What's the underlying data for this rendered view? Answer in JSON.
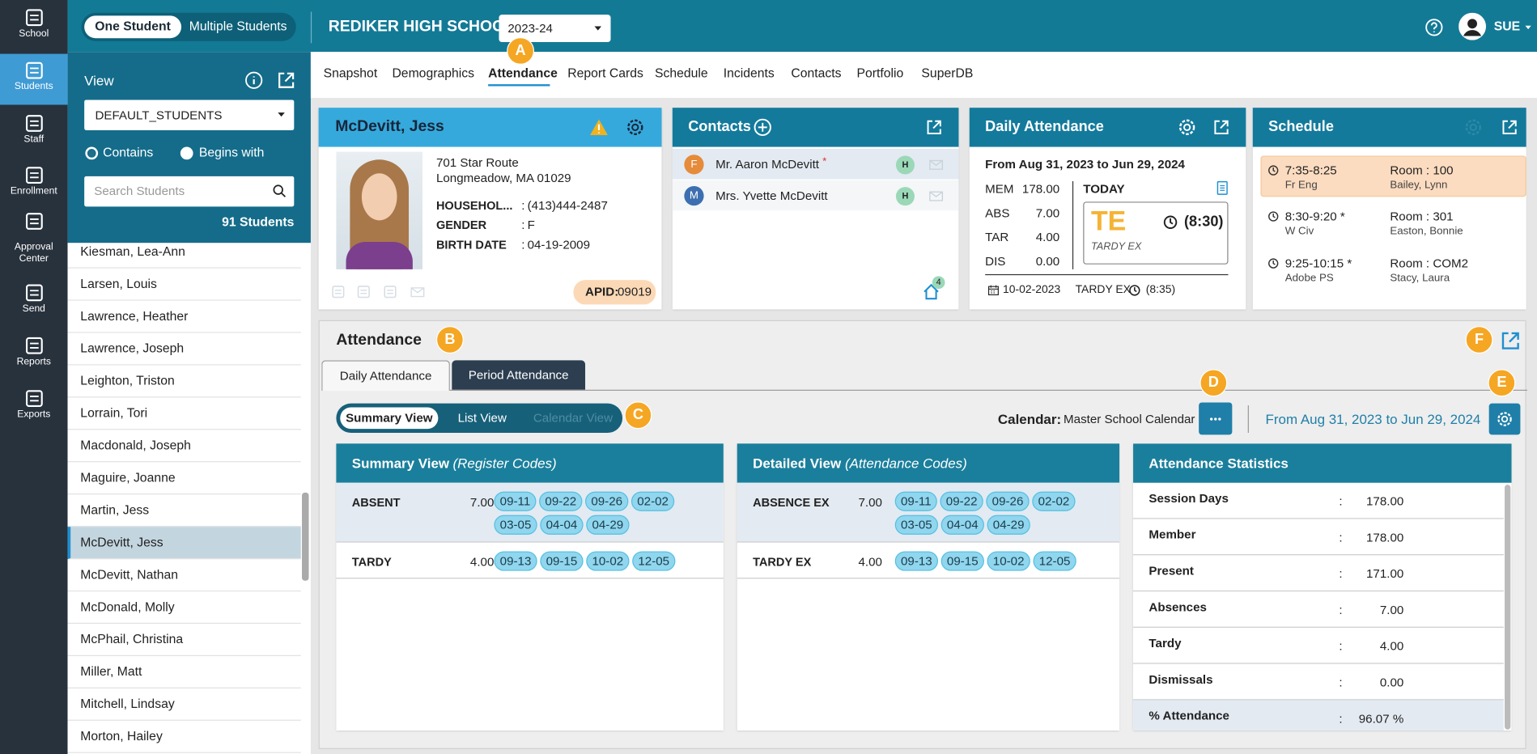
{
  "sidebar": {
    "items": [
      "School",
      "Students",
      "Staff",
      "Enrollment",
      "Approval Center",
      "Send",
      "Reports",
      "Exports"
    ]
  },
  "topbar": {
    "mode_toggle": [
      "One Student",
      "Multiple Students"
    ],
    "school": "REDIKER HIGH SCHOOL",
    "year": "2023-24",
    "user": "SUE"
  },
  "callouts": [
    "A",
    "B",
    "C",
    "D",
    "E",
    "F"
  ],
  "nav_tabs": [
    "Snapshot",
    "Demographics",
    "Attendance",
    "Report Cards",
    "Schedule",
    "Incidents",
    "Contacts",
    "Portfolio",
    "SuperDB"
  ],
  "student_list": {
    "view_label": "View",
    "view": "DEFAULT_STUDENTS",
    "match_options": [
      "Contains",
      "Begins with"
    ],
    "search_placeholder": "Search Students",
    "count": "91 Students",
    "students": [
      "Kiesman, Lea-Ann",
      "Larsen, Louis",
      "Lawrence, Heather",
      "Lawrence, Joseph",
      "Leighton, Triston",
      "Lorrain, Tori",
      "Macdonald, Joseph",
      "Maguire, Joanne",
      "Martin, Jess",
      "McDevitt, Jess",
      "McDevitt, Nathan",
      "McDonald, Molly",
      "McPhail, Christina",
      "Miller, Matt",
      "Mitchell, Lindsay",
      "Morton, Hailey"
    ]
  },
  "student_card": {
    "name": "McDevitt, Jess",
    "address": [
      "701 Star Route",
      "Longmeadow, MA 01029"
    ],
    "separator": ":",
    "fields": [
      {
        "label": "HOUSEHOL...",
        "value": "(413)444-2487"
      },
      {
        "label": "GENDER",
        "value": "F"
      },
      {
        "label": "BIRTH DATE",
        "value": "04-19-2009"
      }
    ],
    "apid_label": "APID:",
    "apid": "09019"
  },
  "contacts": {
    "title": "Contacts",
    "people": [
      {
        "initial": "F",
        "name": "Mr. Aaron McDevitt",
        "marker": "*",
        "tag": "H"
      },
      {
        "initial": "M",
        "name": "Mrs. Yvette McDevitt",
        "tag": "H"
      }
    ],
    "household_count": "4"
  },
  "daily_attendance": {
    "title": "Daily Attendance",
    "range": "From Aug 31, 2023 to Jun 29, 2024",
    "stats": [
      {
        "label": "MEM",
        "value": "178.00"
      },
      {
        "label": "ABS",
        "value": "7.00"
      },
      {
        "label": "TAR",
        "value": "4.00"
      },
      {
        "label": "DIS",
        "value": "0.00"
      }
    ],
    "today_label": "TODAY",
    "today_code": "TE",
    "today_time": "(8:30)",
    "today_desc": "TARDY EX",
    "last": {
      "date": "10-02-2023",
      "code": "TARDY EX",
      "time": "(8:35)"
    }
  },
  "schedule": {
    "title": "Schedule",
    "periods": [
      {
        "time": "7:35-8:25",
        "course": "Fr Eng",
        "room": "Room : 100",
        "teacher": "Bailey, Lynn"
      },
      {
        "time": "8:30-9:20 *",
        "course": "W Civ",
        "room": "Room : 301",
        "teacher": "Easton, Bonnie"
      },
      {
        "time": "9:25-10:15 *",
        "course": "Adobe PS",
        "room": "Room : COM2",
        "teacher": "Stacy, Laura"
      }
    ]
  },
  "attendance": {
    "title": "Attendance",
    "tabs": [
      "Daily Attendance",
      "Period Attendance"
    ],
    "views": [
      "Summary View",
      "List View",
      "Calendar View"
    ],
    "calendar_label": "Calendar:",
    "calendar": "Master School Calendar",
    "range": "From Aug 31, 2023 to Jun 29, 2024",
    "summary": {
      "title": "Summary View",
      "subtitle": "(Register Codes)",
      "rows": [
        {
          "code": "ABSENT",
          "total": "7.00",
          "dates": [
            "09-11",
            "09-22",
            "09-26",
            "02-02",
            "03-05",
            "04-04",
            "04-29"
          ]
        },
        {
          "code": "TARDY",
          "total": "4.00",
          "dates": [
            "09-13",
            "09-15",
            "10-02",
            "12-05"
          ]
        }
      ]
    },
    "detailed": {
      "title": "Detailed View",
      "subtitle": "(Attendance Codes)",
      "rows": [
        {
          "code": "ABSENCE EX",
          "total": "7.00",
          "dates": [
            "09-11",
            "09-22",
            "09-26",
            "02-02",
            "03-05",
            "04-04",
            "04-29"
          ]
        },
        {
          "code": "TARDY EX",
          "total": "4.00",
          "dates": [
            "09-13",
            "09-15",
            "10-02",
            "12-05"
          ]
        }
      ]
    },
    "statistics": {
      "title": "Attendance Statistics",
      "separator": ":",
      "rows": [
        {
          "label": "Session Days",
          "value": "178.00"
        },
        {
          "label": "Member",
          "value": "178.00"
        },
        {
          "label": "Present",
          "value": "171.00"
        },
        {
          "label": "Absences",
          "value": "7.00"
        },
        {
          "label": "Tardy",
          "value": "4.00"
        },
        {
          "label": "Dismissals",
          "value": "0.00"
        },
        {
          "label": "% Attendance",
          "value": "96.07 %"
        }
      ]
    }
  }
}
